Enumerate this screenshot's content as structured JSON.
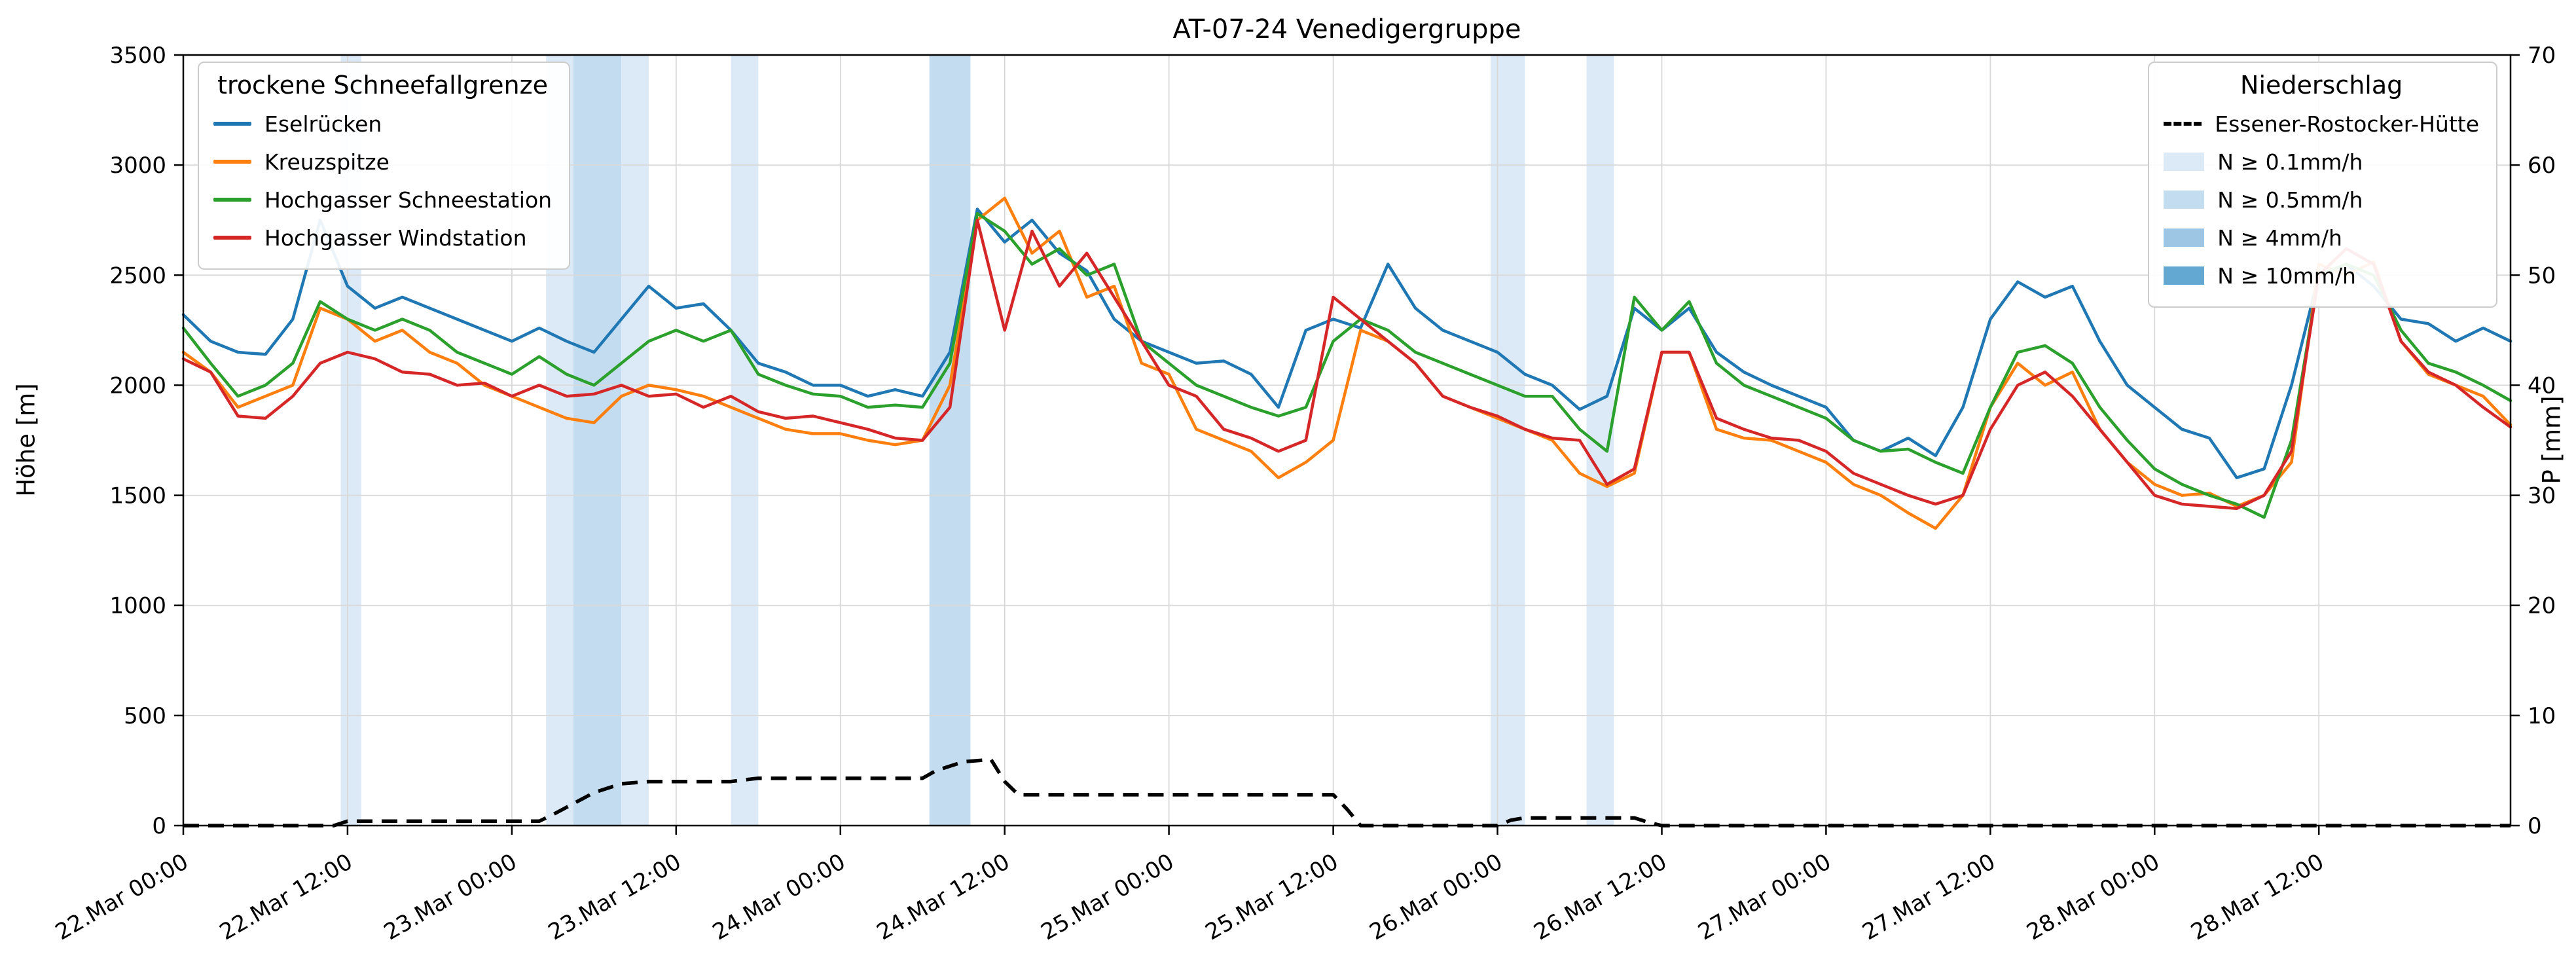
{
  "chart_data": {
    "type": "line",
    "title": "AT-07-24 Venedigergruppe",
    "ylabel_left": "Höhe [m]",
    "ylabel_right": "P [mm]",
    "ylim_left": [
      0,
      3500
    ],
    "ylim_right": [
      0,
      70
    ],
    "yticks_left": [
      0,
      500,
      1000,
      1500,
      2000,
      2500,
      3000,
      3500
    ],
    "yticks_right": [
      0,
      10,
      20,
      30,
      40,
      50,
      60,
      70
    ],
    "x_domain_hours": [
      0,
      170
    ],
    "x_ticks": {
      "hours": [
        0,
        12,
        24,
        36,
        48,
        60,
        72,
        84,
        96,
        108,
        120,
        132,
        144,
        156
      ],
      "labels": [
        "22.Mar 00:00",
        "22.Mar 12:00",
        "23.Mar 00:00",
        "23.Mar 12:00",
        "24.Mar 00:00",
        "24.Mar 12:00",
        "25.Mar 00:00",
        "25.Mar 12:00",
        "26.Mar 00:00",
        "26.Mar 12:00",
        "27.Mar 00:00",
        "27.Mar 12:00",
        "28.Mar 00:00",
        "28.Mar 12:00"
      ]
    },
    "grid": true,
    "grid_color": "#d9d9d9",
    "background": "#ffffff",
    "legend_left_title": "trockene Schneefallgrenze",
    "legend_right_title": "Niederschlag",
    "x_hours": [
      0,
      2,
      4,
      6,
      8,
      10,
      12,
      14,
      16,
      18,
      20,
      22,
      24,
      26,
      28,
      30,
      32,
      34,
      36,
      38,
      40,
      42,
      44,
      46,
      48,
      50,
      52,
      54,
      56,
      58,
      60,
      62,
      64,
      66,
      68,
      70,
      72,
      74,
      76,
      78,
      80,
      82,
      84,
      86,
      88,
      90,
      92,
      94,
      96,
      98,
      100,
      102,
      104,
      106,
      108,
      110,
      112,
      114,
      116,
      118,
      120,
      122,
      124,
      126,
      128,
      130,
      132,
      134,
      136,
      138,
      140,
      142,
      144,
      146,
      148,
      150,
      152,
      154,
      156,
      158,
      160,
      162,
      164,
      166,
      168,
      170
    ],
    "series": [
      {
        "name": "Eselrücken",
        "color": "#1f77b4",
        "values": [
          2320,
          2200,
          2150,
          2140,
          2300,
          2750,
          2450,
          2350,
          2400,
          2350,
          2300,
          2250,
          2200,
          2260,
          2200,
          2150,
          2300,
          2450,
          2350,
          2370,
          2250,
          2100,
          2060,
          2000,
          2000,
          1950,
          1980,
          1950,
          2150,
          2800,
          2650,
          2750,
          2600,
          2520,
          2300,
          2200,
          2150,
          2100,
          2110,
          2050,
          1900,
          2250,
          2300,
          2260,
          2550,
          2350,
          2250,
          2200,
          2150,
          2050,
          2000,
          1890,
          1950,
          2350,
          2250,
          2350,
          2150,
          2060,
          2000,
          1950,
          1900,
          1750,
          1700,
          1760,
          1680,
          1900,
          2300,
          2470,
          2400,
          2450,
          2200,
          2000,
          1900,
          1800,
          1760,
          1580,
          1620,
          2000,
          2500,
          2550,
          2450,
          2300,
          2280,
          2200,
          2260,
          2200
        ]
      },
      {
        "name": "Kreuzspitze",
        "color": "#ff7f0e",
        "values": [
          2150,
          2060,
          1900,
          1950,
          2000,
          2350,
          2300,
          2200,
          2250,
          2150,
          2100,
          2000,
          1950,
          1900,
          1850,
          1830,
          1950,
          2000,
          1980,
          1950,
          1900,
          1850,
          1800,
          1780,
          1780,
          1750,
          1730,
          1750,
          2000,
          2750,
          2850,
          2600,
          2700,
          2400,
          2450,
          2100,
          2050,
          1800,
          1750,
          1700,
          1580,
          1650,
          1750,
          2250,
          2200,
          2100,
          1950,
          1900,
          1850,
          1800,
          1750,
          1600,
          1540,
          1600,
          2150,
          2150,
          1800,
          1760,
          1750,
          1700,
          1650,
          1550,
          1500,
          1420,
          1350,
          1500,
          1900,
          2100,
          2000,
          2060,
          1800,
          1650,
          1550,
          1500,
          1510,
          1450,
          1500,
          1650,
          2550,
          2500,
          2560,
          2200,
          2050,
          2000,
          1950,
          1820
        ]
      },
      {
        "name": "Hochgasser Schneestation",
        "color": "#2ca02c",
        "values": [
          2260,
          2100,
          1950,
          2000,
          2100,
          2380,
          2300,
          2250,
          2300,
          2250,
          2150,
          2100,
          2050,
          2130,
          2050,
          2000,
          2100,
          2200,
          2250,
          2200,
          2250,
          2050,
          2000,
          1960,
          1950,
          1900,
          1910,
          1900,
          2100,
          2780,
          2700,
          2550,
          2620,
          2500,
          2550,
          2200,
          2100,
          2000,
          1950,
          1900,
          1860,
          1900,
          2200,
          2300,
          2250,
          2150,
          2100,
          2050,
          2000,
          1950,
          1950,
          1800,
          1700,
          2400,
          2250,
          2380,
          2100,
          2000,
          1950,
          1900,
          1850,
          1750,
          1700,
          1710,
          1650,
          1600,
          1900,
          2150,
          2180,
          2100,
          1900,
          1750,
          1620,
          1550,
          1500,
          1460,
          1400,
          1750,
          2500,
          2550,
          2500,
          2250,
          2100,
          2060,
          2000,
          1930
        ]
      },
      {
        "name": "Hochgasser Windstation",
        "color": "#d62728",
        "values": [
          2120,
          2060,
          1860,
          1850,
          1950,
          2100,
          2150,
          2120,
          2060,
          2050,
          2000,
          2010,
          1950,
          2000,
          1950,
          1960,
          2000,
          1950,
          1960,
          1900,
          1950,
          1880,
          1850,
          1860,
          1830,
          1800,
          1760,
          1750,
          1900,
          2750,
          2250,
          2700,
          2450,
          2600,
          2400,
          2200,
          2000,
          1950,
          1800,
          1760,
          1700,
          1750,
          2400,
          2300,
          2200,
          2100,
          1950,
          1900,
          1860,
          1800,
          1760,
          1750,
          1550,
          1620,
          2150,
          2150,
          1850,
          1800,
          1760,
          1750,
          1700,
          1600,
          1550,
          1500,
          1460,
          1500,
          1800,
          2000,
          2060,
          1950,
          1800,
          1650,
          1500,
          1460,
          1450,
          1440,
          1500,
          1700,
          2500,
          2620,
          2550,
          2200,
          2060,
          2000,
          1900,
          1810
        ]
      }
    ],
    "precip": {
      "line": {
        "name": "Essener-Rostocker-Hütte",
        "color": "#000000",
        "style": "dashed",
        "x_hours": [
          0,
          11,
          12,
          26,
          27,
          30,
          32,
          34,
          40,
          42,
          54,
          55,
          57,
          59,
          60,
          61,
          84,
          85,
          86,
          96,
          97,
          98,
          106,
          107,
          108,
          170
        ],
        "values_mm": [
          0,
          0,
          0.4,
          0.4,
          1.0,
          3.0,
          3.8,
          4.0,
          4.0,
          4.3,
          4.3,
          5.0,
          5.8,
          6.0,
          4.0,
          2.8,
          2.8,
          1.5,
          0,
          0,
          0.5,
          0.7,
          0.7,
          0.3,
          0,
          0
        ]
      },
      "levels": [
        {
          "label": "N ≥ 0.1mm/h",
          "color": "#dce9f6"
        },
        {
          "label": "N ≥ 0.5mm/h",
          "color": "#c3dcef"
        },
        {
          "label": "N ≥ 4mm/h",
          "color": "#9cc6e4"
        },
        {
          "label": "N ≥ 10mm/h",
          "color": "#62a8d2"
        }
      ],
      "bands": [
        {
          "start": 11.5,
          "end": 13,
          "level": 0
        },
        {
          "start": 26.5,
          "end": 28.5,
          "level": 0
        },
        {
          "start": 28.5,
          "end": 32,
          "level": 1
        },
        {
          "start": 32,
          "end": 34,
          "level": 0
        },
        {
          "start": 40,
          "end": 42,
          "level": 0
        },
        {
          "start": 54.5,
          "end": 57.5,
          "level": 1
        },
        {
          "start": 95.5,
          "end": 98,
          "level": 0
        },
        {
          "start": 102.5,
          "end": 104.5,
          "level": 0
        }
      ]
    }
  }
}
